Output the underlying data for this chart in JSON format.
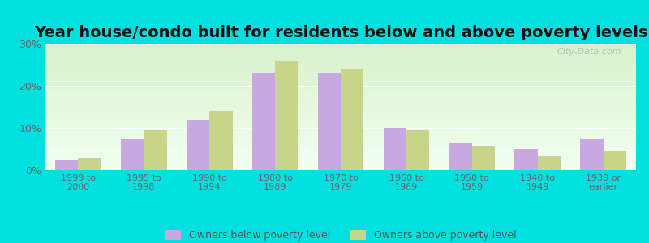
{
  "title": "Year house/condo built for residents below and above poverty levels",
  "categories": [
    "1999 to\n2000",
    "1995 to\n1998",
    "1990 to\n1994",
    "1980 to\n1989",
    "1970 to\n1979",
    "1960 to\n1969",
    "1950 to\n1959",
    "1940 to\n1949",
    "1939 or\nearlier"
  ],
  "below_poverty": [
    2.5,
    7.5,
    12.0,
    23.0,
    23.0,
    10.0,
    6.5,
    5.0,
    7.5
  ],
  "above_poverty": [
    2.8,
    9.5,
    14.0,
    26.0,
    24.0,
    9.5,
    5.8,
    3.5,
    4.5
  ],
  "below_color": "#c9a8e0",
  "above_color": "#c8d48a",
  "ylim": [
    0,
    30
  ],
  "yticks": [
    0,
    10,
    20,
    30
  ],
  "ytick_labels": [
    "0%",
    "10%",
    "20%",
    "30%"
  ],
  "legend_below": "Owners below poverty level",
  "legend_above": "Owners above poverty level",
  "outer_bg": "#00e0e0",
  "title_fontsize": 14,
  "bar_width": 0.35,
  "watermark": "City-Data.com"
}
